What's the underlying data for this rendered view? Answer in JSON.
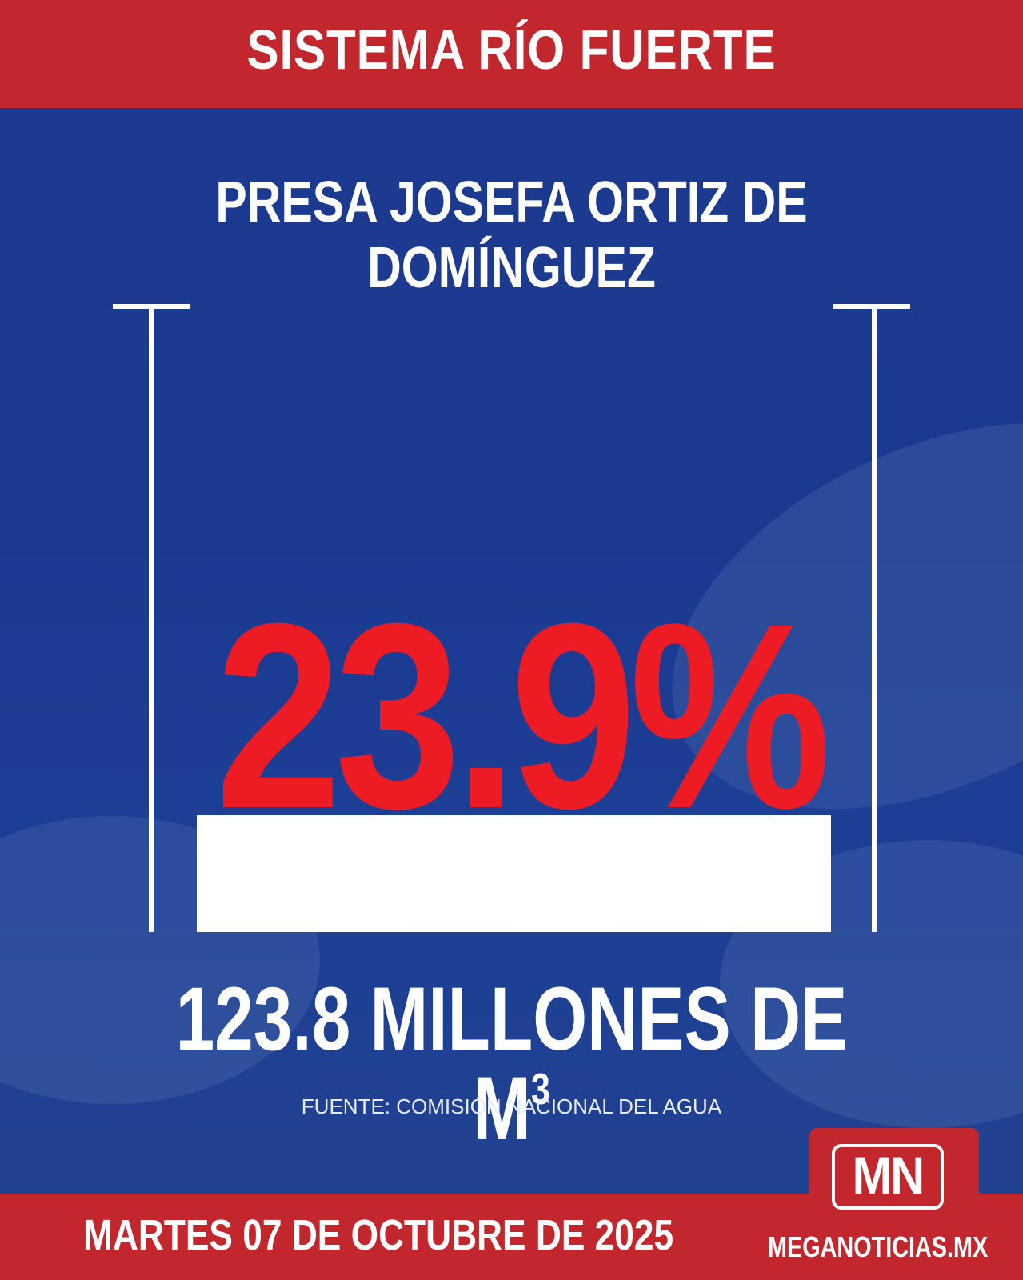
{
  "header": {
    "title": "SISTEMA RÍO FUERTE"
  },
  "dam": {
    "name": "PRESA JOSEFA ORTIZ DE DOMÍNGUEZ"
  },
  "storage": {
    "percent_label": "23.9%",
    "percent_value": 23.9,
    "volume_label": "123.8 MILLONES DE M",
    "volume_unit_sup": "3"
  },
  "source": {
    "text": "FUENTE: COMISIÓN NACIONAL DEL AGUA"
  },
  "footer": {
    "date": "MARTES 07 DE OCTUBRE DE 2025",
    "site": "MEGANOTICIAS.MX"
  },
  "logo": {
    "text": "MN"
  },
  "colors": {
    "brand_red": "#c1272d",
    "percent_red": "#ed1c24",
    "background_blue": "#1c3a8f",
    "white": "#ffffff"
  }
}
